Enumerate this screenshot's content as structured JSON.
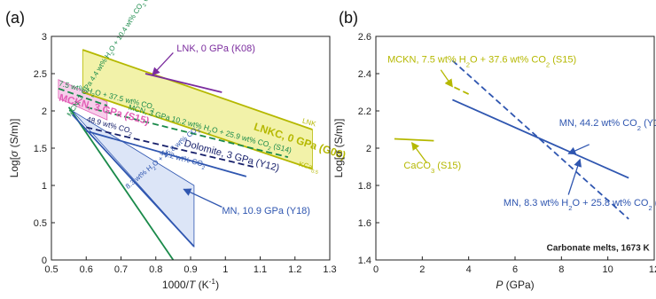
{
  "panels": [
    "(a)",
    "(b)"
  ],
  "colors": {
    "axis": "#222222",
    "olive": "#b5b800",
    "olive_fill": "#f0f09a",
    "pink": "#e25fb6",
    "pink_fill": "#f6c6e6",
    "green": "#1a8a4a",
    "navy": "#17206b",
    "blue": "#2f56b0",
    "blue_fill": "#d6e1f6",
    "purple": "#7b2c9e"
  },
  "chart_data": [
    {
      "type": "line",
      "panel": "(a)",
      "xlabel_prefix": "1000/",
      "xlabel_var": "T",
      "xlabel_suffix": " (K",
      "xlabel_sup": "-1",
      "xlabel_end": ")",
      "ylabel_prefix": "Log[",
      "ylabel_var": "σ",
      "ylabel_suffix": " (S/m)]",
      "xlim": [
        0.5,
        1.3
      ],
      "ylim": [
        0,
        3
      ],
      "xticks": [
        0.5,
        0.6,
        0.7,
        0.8,
        0.9,
        1.0,
        1.1,
        1.2,
        1.3
      ],
      "xtick_labels": [
        "0.5",
        "0.6",
        "0.7",
        "0.8",
        "0.9",
        "1",
        "1.1",
        "1.2",
        "1.3"
      ],
      "yticks": [
        0,
        0.5,
        1,
        1.5,
        2,
        2.5,
        3
      ],
      "ytick_labels": [
        "0",
        "0.5",
        "1",
        "1.5",
        "2",
        "2.5",
        "3"
      ],
      "grid": false,
      "regions": [
        {
          "name": "LNKC band",
          "color": "olive",
          "fill": "olive_fill",
          "points": [
            [
              0.59,
              2.82
            ],
            [
              1.25,
              1.75
            ],
            [
              1.25,
              1.22
            ],
            [
              0.59,
              2.25
            ]
          ]
        },
        {
          "name": "MCKN band",
          "color": "pink",
          "fill": "pink_fill",
          "points": [
            [
              0.52,
              2.42
            ],
            [
              0.66,
              2.12
            ],
            [
              0.66,
              1.88
            ],
            [
              0.52,
              2.17
            ]
          ]
        },
        {
          "name": "MN 10.9 GPa region",
          "color": "blue",
          "fill": "blue_fill",
          "points": [
            [
              0.56,
              2.0
            ],
            [
              0.91,
              1.0
            ],
            [
              0.91,
              0.18
            ]
          ]
        }
      ],
      "series": [
        {
          "name": "LNK",
          "color": "olive",
          "dash": false,
          "x": [
            0.59,
            1.25
          ],
          "y": [
            2.82,
            1.75
          ]
        },
        {
          "name": "KCa",
          "color": "olive",
          "dash": false,
          "x": [
            0.59,
            1.25
          ],
          "y": [
            2.25,
            1.22
          ]
        },
        {
          "name": "LNK, 0 GPa (K08)",
          "color": "purple",
          "dash": false,
          "x": [
            0.77,
            0.99
          ],
          "y": [
            2.5,
            2.25
          ]
        },
        {
          "name": "MCKN 7.5 wt% H2O + 37.5 wt% CO2",
          "color": "green",
          "dash": true,
          "x": [
            0.52,
            0.66
          ],
          "y": [
            2.3,
            2.07
          ]
        },
        {
          "name": "MCN 3 GPa 10.2 wt% H2O + 25.9 wt% CO2",
          "color": "green",
          "dash": true,
          "x": [
            0.6,
            1.18
          ],
          "y": [
            2.05,
            1.38
          ]
        },
        {
          "name": "Dolomite, 3 GPa (Y12)",
          "color": "navy",
          "dash": true,
          "x": [
            0.6,
            1.08
          ],
          "y": [
            1.78,
            1.25
          ]
        },
        {
          "name": "44.2 wt% CO2",
          "color": "blue",
          "dash": false,
          "x": [
            0.6,
            1.06
          ],
          "y": [
            1.73,
            1.12
          ]
        },
        {
          "name": "MCN 3 GPa 4.4 wt% H2O + 10.4 wt% CO2",
          "color": "green",
          "dash": false,
          "x": [
            0.55,
            0.85
          ],
          "y": [
            2.05,
            0.0
          ]
        },
        {
          "name": "8.3 wt% H2O + 25.8 wt% CO2",
          "color": "blue",
          "dash": false,
          "x": [
            0.56,
            0.91
          ],
          "y": [
            1.95,
            0.18
          ]
        }
      ],
      "annotations": [
        {
          "text": "LNK, 0 GPa (K08)",
          "color": "purple",
          "x": 0.86,
          "y": 2.8,
          "size": 11,
          "anchor": "start",
          "rot": 0
        },
        {
          "text": "LNKC, 0 GPa (G08)",
          "color": "olive",
          "x": 1.08,
          "y": 1.75,
          "size": 12,
          "anchor": "start",
          "rot": -18,
          "bold": true
        },
        {
          "text": "LNK",
          "color": "olive",
          "x": 1.22,
          "y": 1.84,
          "size": 8,
          "anchor": "start",
          "rot": -15
        },
        {
          "text": "KCa",
          "sub": "0.5",
          "color": "olive",
          "x": 1.21,
          "y": 1.26,
          "size": 8,
          "anchor": "start",
          "rot": -15
        },
        {
          "text": "7.5 wt% H",
          "sub": "2",
          "text2": "O + 37.5 wt% CO",
          "sub2": "2",
          "color": "green",
          "x": 0.52,
          "y": 2.34,
          "size": 8.5,
          "anchor": "start",
          "rot": -14
        },
        {
          "text": "MCKN, 3 GPa (S15)",
          "color": "pink",
          "x": 0.52,
          "y": 2.14,
          "size": 11.5,
          "anchor": "start",
          "rot": -15,
          "bold": true
        },
        {
          "text": "MCN, 3 GPa 10.2 wt% H",
          "sub": "2",
          "text2": "O + 25.9 wt% CO",
          "sub2": "2",
          "text3": " (S14)",
          "color": "green",
          "x": 0.72,
          "y": 2.02,
          "size": 8.5,
          "anchor": "start",
          "rot": -15
        },
        {
          "text": "48.9 wt% CO",
          "sub": "2",
          "color": "navy",
          "x": 0.6,
          "y": 1.86,
          "size": 8.5,
          "anchor": "start",
          "rot": -15
        },
        {
          "text": "Dolomite, 3 GPa (Y12)",
          "color": "navy",
          "x": 0.88,
          "y": 1.53,
          "size": 11,
          "anchor": "start",
          "rot": -15
        },
        {
          "text": "44.2 wt% CO",
          "sub": "2",
          "color": "blue",
          "x": 0.81,
          "y": 1.41,
          "size": 8.5,
          "anchor": "start",
          "rot": -15
        },
        {
          "text": "MCN, 3 GPa 4.4 wt% H",
          "sub": "2",
          "text2": "O + 10.4 wt% CO",
          "sub2": "2",
          "text3": " (S14)",
          "color": "green",
          "x": 0.555,
          "y": 1.92,
          "size": 8,
          "anchor": "start",
          "rot": 57
        },
        {
          "text": "8.3 wt% H",
          "sub": "2",
          "text2": "O + 25.8 wt% CO",
          "sub2": "2",
          "color": "blue",
          "x": 0.72,
          "y": 0.95,
          "size": 8,
          "anchor": "start",
          "rot": 40
        },
        {
          "text": "MN, 10.9 GPa (Y18)",
          "color": "blue",
          "x": 0.99,
          "y": 0.62,
          "size": 11,
          "anchor": "start",
          "rot": 0
        }
      ],
      "arrows": [
        {
          "color": "purple",
          "from": [
            0.85,
            2.78
          ],
          "to": [
            0.79,
            2.48
          ]
        },
        {
          "color": "blue",
          "from": [
            0.99,
            0.71
          ],
          "to": [
            0.88,
            0.95
          ]
        }
      ]
    },
    {
      "type": "line",
      "panel": "(b)",
      "xlabel_prefix": "",
      "xlabel_var": "P",
      "xlabel_suffix": " (GPa)",
      "ylabel_prefix": "Log[",
      "ylabel_var": "σ",
      "ylabel_suffix": " (S/m)]",
      "xlim": [
        0,
        12
      ],
      "ylim": [
        1.4,
        2.6
      ],
      "xticks": [
        0,
        2,
        4,
        6,
        8,
        10,
        12
      ],
      "xtick_labels": [
        "0",
        "2",
        "4",
        "6",
        "8",
        "10",
        "12"
      ],
      "yticks": [
        1.4,
        1.6,
        1.8,
        2.0,
        2.2,
        2.4,
        2.6
      ],
      "ytick_labels": [
        "1.4",
        "1.6",
        "1.8",
        "2",
        "2.2",
        "2.4",
        "2.6"
      ],
      "grid": false,
      "series": [
        {
          "name": "MCKN, 7.5 wt% H2O + 37.6 wt% CO2 (S15)",
          "color": "olive",
          "dash": true,
          "x": [
            3.0,
            4.0
          ],
          "y": [
            2.35,
            2.29
          ]
        },
        {
          "name": "CaCO3 (S15)",
          "color": "olive",
          "dash": false,
          "x": [
            0.8,
            2.5
          ],
          "y": [
            2.05,
            2.04
          ]
        },
        {
          "name": "MN, 44.2 wt% CO2 (Y18)",
          "color": "blue",
          "dash": false,
          "x": [
            3.3,
            10.9
          ],
          "y": [
            2.26,
            1.84
          ]
        },
        {
          "name": "MN, 8.3 wt% H2O + 25.8 wt% CO2 (Y18)",
          "color": "blue",
          "dash": true,
          "x": [
            3.3,
            10.9
          ],
          "y": [
            2.47,
            1.62
          ]
        }
      ],
      "annotations": [
        {
          "text": "MCKN, 7.5 wt% H",
          "sub": "2",
          "text2": "O + 37.6 wt% CO",
          "sub2": "2",
          "text3": " (S15)",
          "color": "olive",
          "x": 0.5,
          "y": 2.46,
          "size": 11,
          "anchor": "start",
          "rot": 0
        },
        {
          "text": "CaCO",
          "sub": "3",
          "text2": " (S15)",
          "color": "olive",
          "x": 1.2,
          "y": 1.89,
          "size": 11,
          "anchor": "start",
          "rot": 0
        },
        {
          "text": "MN, 44.2 wt% CO",
          "sub": "2",
          "text2": " (Y18)",
          "color": "blue",
          "x": 7.9,
          "y": 2.12,
          "size": 11,
          "anchor": "start",
          "rot": 0
        },
        {
          "text": "MN, 8.3 wt% H",
          "sub": "2",
          "text2": "O + 25.8 wt% CO",
          "sub2": "2",
          "text3": " (Y18)",
          "color": "blue",
          "x": 5.5,
          "y": 1.69,
          "size": 11,
          "anchor": "start",
          "rot": 0
        },
        {
          "text": "Carbonate melts, 1673 K",
          "color": "axis",
          "x": 11.8,
          "y": 1.45,
          "size": 10,
          "anchor": "end",
          "rot": 0,
          "bold": true
        }
      ],
      "arrows": [
        {
          "color": "olive",
          "from": [
            2.8,
            2.42
          ],
          "to": [
            3.3,
            2.33
          ]
        },
        {
          "color": "olive",
          "from": [
            2.2,
            1.92
          ],
          "to": [
            1.55,
            2.03
          ]
        },
        {
          "color": "blue",
          "from": [
            9.2,
            2.02
          ],
          "to": [
            8.3,
            1.97
          ]
        },
        {
          "color": "blue",
          "from": [
            8.3,
            1.75
          ],
          "to": [
            8.8,
            1.94
          ]
        }
      ]
    }
  ]
}
